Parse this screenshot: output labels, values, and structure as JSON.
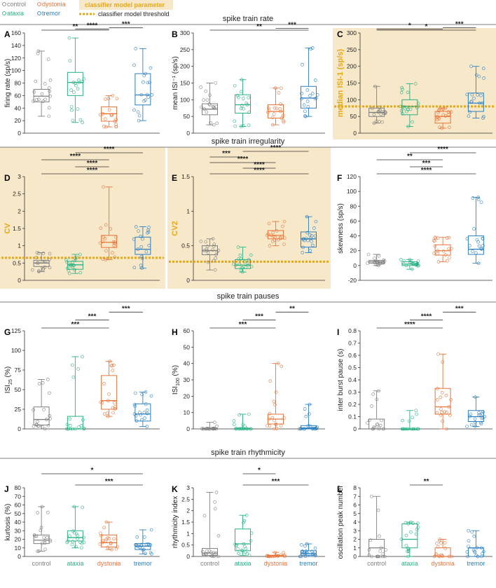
{
  "legend": {
    "groups": [
      {
        "name": "control",
        "color": "#7f7f7f"
      },
      {
        "name": "dystonia",
        "color": "#e8743b"
      },
      {
        "name": "ataxia",
        "color": "#27b184"
      },
      {
        "name": "tremor",
        "color": "#2a7fc1"
      }
    ],
    "param_label": "classifier model parameter",
    "threshold_label": "classifier model threshold",
    "param_color": "#f7e8c9",
    "threshold_color": "#e6a817"
  },
  "sections": [
    {
      "title": "spike train rate"
    },
    {
      "title": "spike train irregularity"
    },
    {
      "title": "spike train pauses"
    },
    {
      "title": "spike train rhythmicity"
    }
  ],
  "chart_data": [
    {
      "type": "box",
      "panel": "A",
      "ylabel": "firing rate (sp/s)",
      "ylim": [
        0,
        160
      ],
      "yticks": [
        0,
        20,
        40,
        60,
        80,
        100,
        120,
        140,
        160
      ],
      "highlight": false,
      "categories": [
        "control",
        "ataxia",
        "dystonia",
        "tremor"
      ],
      "boxes": [
        {
          "min": 27,
          "q1": 50,
          "median": 59,
          "q3": 70,
          "max": 131
        },
        {
          "min": 17,
          "q1": 60,
          "median": 81,
          "q3": 97,
          "max": 152
        },
        {
          "min": 10,
          "q1": 19,
          "median": 31,
          "q3": 42,
          "max": 60
        },
        {
          "min": 20,
          "q1": 45,
          "median": 61,
          "q3": 95,
          "max": 135
        }
      ],
      "significance": [
        {
          "from": 0,
          "to": 2,
          "label": "**"
        },
        {
          "from": 1,
          "to": 2,
          "label": "****"
        },
        {
          "from": 2,
          "to": 3,
          "label": "***"
        }
      ]
    },
    {
      "type": "box",
      "panel": "B",
      "ylabel": "mean ISI⁻¹ (sp/s)",
      "ylim": [
        0,
        300
      ],
      "yticks": [
        0,
        50,
        100,
        150,
        200,
        250,
        300
      ],
      "highlight": false,
      "categories": [
        "control",
        "ataxia",
        "dystonia",
        "tremor"
      ],
      "boxes": [
        {
          "min": 25,
          "q1": 55,
          "median": 72,
          "q3": 88,
          "max": 150
        },
        {
          "min": 20,
          "q1": 60,
          "median": 85,
          "q3": 115,
          "max": 160
        },
        {
          "min": 25,
          "q1": 45,
          "median": 65,
          "q3": 85,
          "max": 135
        },
        {
          "min": 50,
          "q1": 75,
          "median": 105,
          "q3": 140,
          "max": 255
        }
      ],
      "significance": [
        {
          "from": 0,
          "to": 3,
          "label": "**"
        },
        {
          "from": 2,
          "to": 3,
          "label": "***"
        }
      ]
    },
    {
      "type": "box",
      "panel": "C",
      "ylabel": "median ISI-1 (sp/s)",
      "ylim": [
        0,
        300
      ],
      "yticks": [
        0,
        50,
        100,
        150,
        200,
        250,
        300
      ],
      "highlight": true,
      "threshold": 80,
      "categories": [
        "control",
        "ataxia",
        "dystonia",
        "tremor"
      ],
      "boxes": [
        {
          "min": 30,
          "q1": 50,
          "median": 62,
          "q3": 75,
          "max": 140
        },
        {
          "min": 20,
          "q1": 55,
          "median": 80,
          "q3": 100,
          "max": 148
        },
        {
          "min": 15,
          "q1": 30,
          "median": 50,
          "q3": 65,
          "max": 75
        },
        {
          "min": 45,
          "q1": 65,
          "median": 90,
          "q3": 120,
          "max": 200
        }
      ],
      "significance": [
        {
          "from": 0,
          "to": 3,
          "label": "*"
        },
        {
          "from": 0,
          "to": 2,
          "label": "*"
        },
        {
          "from": 2,
          "to": 3,
          "label": "***"
        }
      ]
    },
    {
      "type": "box",
      "panel": "D",
      "ylabel": "CV",
      "ylim": [
        0,
        3
      ],
      "yticks": [
        0,
        0.5,
        1,
        1.5,
        2,
        2.5,
        3
      ],
      "highlight": true,
      "threshold": 0.65,
      "categories": [
        "control",
        "ataxia",
        "dystonia",
        "tremor"
      ],
      "boxes": [
        {
          "min": 0.25,
          "q1": 0.4,
          "median": 0.5,
          "q3": 0.58,
          "max": 0.8
        },
        {
          "min": 0.2,
          "q1": 0.32,
          "median": 0.45,
          "q3": 0.55,
          "max": 0.75
        },
        {
          "min": 0.6,
          "q1": 0.95,
          "median": 1.1,
          "q3": 1.3,
          "max": 2.7
        },
        {
          "min": 0.35,
          "q1": 0.75,
          "median": 0.9,
          "q3": 1.25,
          "max": 1.55
        }
      ],
      "significance": [
        {
          "from": 0,
          "to": 3,
          "label": "****"
        },
        {
          "from": 1,
          "to": 2,
          "label": "****"
        },
        {
          "from": 0,
          "to": 2,
          "label": "****"
        },
        {
          "from": 1,
          "to": 3,
          "label": "****"
        }
      ]
    },
    {
      "type": "box",
      "panel": "E",
      "ylabel": "CV2",
      "ylim": [
        0,
        1.5
      ],
      "yticks": [
        0,
        0.5,
        1,
        1.5
      ],
      "highlight": true,
      "threshold": 0.27,
      "categories": [
        "control",
        "ataxia",
        "dystonia",
        "tremor"
      ],
      "boxes": [
        {
          "min": 0.15,
          "q1": 0.37,
          "median": 0.43,
          "q3": 0.5,
          "max": 0.6
        },
        {
          "min": 0.12,
          "q1": 0.17,
          "median": 0.22,
          "q3": 0.3,
          "max": 0.48
        },
        {
          "min": 0.5,
          "q1": 0.6,
          "median": 0.65,
          "q3": 0.72,
          "max": 0.85
        },
        {
          "min": 0.4,
          "q1": 0.48,
          "median": 0.6,
          "q3": 0.7,
          "max": 0.92
        }
      ],
      "significance": [
        {
          "from": 0,
          "to": 3,
          "label": "****"
        },
        {
          "from": 1,
          "to": 2,
          "label": "****"
        },
        {
          "from": 0,
          "to": 2,
          "label": "****"
        },
        {
          "from": 0,
          "to": 1,
          "label": "***"
        },
        {
          "from": 1,
          "to": 3,
          "label": "****"
        }
      ]
    },
    {
      "type": "box",
      "panel": "F",
      "ylabel": "skewness (sp/s)",
      "ylim": [
        -20,
        120
      ],
      "yticks": [
        -20,
        0,
        20,
        40,
        60,
        80,
        100,
        120
      ],
      "highlight": false,
      "categories": [
        "control",
        "ataxia",
        "dystonia",
        "tremor"
      ],
      "boxes": [
        {
          "min": 0,
          "q1": 3,
          "median": 5,
          "q3": 7,
          "max": 15
        },
        {
          "min": -5,
          "q1": 0,
          "median": 2,
          "q3": 5,
          "max": 8
        },
        {
          "min": 5,
          "q1": 14,
          "median": 20,
          "q3": 28,
          "max": 38
        },
        {
          "min": 3,
          "q1": 15,
          "median": 22,
          "q3": 40,
          "max": 92
        }
      ],
      "significance": [
        {
          "from": 0,
          "to": 3,
          "label": "****"
        },
        {
          "from": 1,
          "to": 2,
          "label": "***"
        },
        {
          "from": 0,
          "to": 2,
          "label": "**"
        },
        {
          "from": 1,
          "to": 3,
          "label": "****"
        }
      ]
    },
    {
      "type": "box",
      "panel": "G",
      "ylabel": "ISI25 (%)",
      "ylabel_main": "ISI",
      "ylabel_sub": "25",
      "ylabel_tail": " (%)",
      "ylim": [
        0,
        125
      ],
      "yticks": [
        0,
        25,
        50,
        75,
        100,
        125
      ],
      "highlight": false,
      "categories": [
        "control",
        "ataxia",
        "dystonia",
        "tremor"
      ],
      "boxes": [
        {
          "min": 0,
          "q1": 5,
          "median": 12,
          "q3": 28,
          "max": 63
        },
        {
          "min": 0,
          "q1": 0,
          "median": 0,
          "q3": 16,
          "max": 92
        },
        {
          "min": 16,
          "q1": 25,
          "median": 36,
          "q3": 68,
          "max": 86
        },
        {
          "min": 3,
          "q1": 10,
          "median": 19,
          "q3": 32,
          "max": 47
        }
      ],
      "significance": [
        {
          "from": 0,
          "to": 2,
          "label": "***"
        },
        {
          "from": 1,
          "to": 2,
          "label": "***"
        },
        {
          "from": 2,
          "to": 3,
          "label": "***"
        }
      ]
    },
    {
      "type": "box",
      "panel": "H",
      "ylabel": "ISI100 (%)",
      "ylabel_main": "ISI",
      "ylabel_sub": "100",
      "ylabel_tail": " (%)",
      "ylim": [
        0,
        60
      ],
      "yticks": [
        0,
        10,
        20,
        30,
        40,
        50,
        60
      ],
      "highlight": false,
      "categories": [
        "control",
        "ataxia",
        "dystonia",
        "tremor"
      ],
      "boxes": [
        {
          "min": 0,
          "q1": 0,
          "median": 0,
          "q3": 0.3,
          "max": 4
        },
        {
          "min": 0,
          "q1": 0,
          "median": 0,
          "q3": 0.3,
          "max": 9
        },
        {
          "min": 0,
          "q1": 3,
          "median": 6,
          "q3": 9,
          "max": 40
        },
        {
          "min": 0,
          "q1": 0,
          "median": 0.5,
          "q3": 2,
          "max": 15
        }
      ],
      "significance": [
        {
          "from": 0,
          "to": 2,
          "label": "***"
        },
        {
          "from": 1,
          "to": 2,
          "label": "***"
        },
        {
          "from": 2,
          "to": 3,
          "label": "**"
        }
      ]
    },
    {
      "type": "box",
      "panel": "I",
      "ylabel": "inter burst pause (s)",
      "ylim": [
        0,
        0.8
      ],
      "yticks": [
        0,
        0.1,
        0.2,
        0.3,
        0.4,
        0.5,
        0.6,
        0.7,
        0.8
      ],
      "highlight": false,
      "categories": [
        "control",
        "ataxia",
        "dystonia",
        "tremor"
      ],
      "boxes": [
        {
          "min": 0,
          "q1": 0,
          "median": 0,
          "q3": 0.08,
          "max": 0.31
        },
        {
          "min": 0,
          "q1": 0,
          "median": 0,
          "q3": 0,
          "max": 0.15
        },
        {
          "min": 0,
          "q1": 0.12,
          "median": 0.18,
          "q3": 0.33,
          "max": 0.61
        },
        {
          "min": 0.02,
          "q1": 0.06,
          "median": 0.1,
          "q3": 0.15,
          "max": 0.26
        }
      ],
      "significance": [
        {
          "from": 0,
          "to": 2,
          "label": "****"
        },
        {
          "from": 1,
          "to": 2,
          "label": "****"
        },
        {
          "from": 2,
          "to": 3,
          "label": "***"
        }
      ]
    },
    {
      "type": "box",
      "panel": "J",
      "ylabel": "kurtosis (%)",
      "ylim": [
        0,
        80
      ],
      "yticks": [
        0,
        10,
        20,
        30,
        40,
        50,
        60,
        70,
        80
      ],
      "highlight": false,
      "categories": [
        "control",
        "ataxia",
        "dystonia",
        "tremor"
      ],
      "boxes": [
        {
          "min": 6,
          "q1": 15,
          "median": 19,
          "q3": 25,
          "max": 58
        },
        {
          "min": 10,
          "q1": 18,
          "median": 22,
          "q3": 30,
          "max": 58
        },
        {
          "min": 8,
          "q1": 11,
          "median": 16,
          "q3": 25,
          "max": 40
        },
        {
          "min": 3,
          "q1": 8,
          "median": 12,
          "q3": 15,
          "max": 31
        }
      ],
      "significance": [
        {
          "from": 1,
          "to": 3,
          "label": "***"
        },
        {
          "from": 0,
          "to": 3,
          "label": "*"
        }
      ]
    },
    {
      "type": "box",
      "panel": "K",
      "ylabel": "rhythmicity index",
      "ylim": [
        0,
        3
      ],
      "yticks": [
        0,
        0.5,
        1,
        1.5,
        2,
        2.5,
        3
      ],
      "highlight": false,
      "categories": [
        "control",
        "ataxia",
        "dystonia",
        "tremor"
      ],
      "boxes": [
        {
          "min": 0,
          "q1": 0.05,
          "median": 0.15,
          "q3": 0.35,
          "max": 2.8
        },
        {
          "min": 0.05,
          "q1": 0.25,
          "median": 0.55,
          "q3": 1.2,
          "max": 1.8
        },
        {
          "min": 0,
          "q1": 0,
          "median": 0.02,
          "q3": 0.05,
          "max": 0.18
        },
        {
          "min": 0,
          "q1": 0.05,
          "median": 0.12,
          "q3": 0.25,
          "max": 0.55
        }
      ],
      "significance": [
        {
          "from": 1,
          "to": 3,
          "label": "***"
        },
        {
          "from": 1,
          "to": 2,
          "label": "*"
        }
      ]
    },
    {
      "type": "box",
      "panel": "L",
      "ylabel": "oscillation peak number",
      "ylim": [
        0,
        8
      ],
      "yticks": [
        0,
        1,
        2,
        3,
        4,
        5,
        6,
        7,
        8
      ],
      "highlight": false,
      "categories": [
        "control",
        "ataxia",
        "dystonia",
        "tremor"
      ],
      "boxes": [
        {
          "min": 0,
          "q1": 0,
          "median": 1,
          "q3": 2,
          "max": 7
        },
        {
          "min": 0,
          "q1": 1,
          "median": 2,
          "q3": 3.8,
          "max": 4
        },
        {
          "min": 0,
          "q1": 0,
          "median": 0,
          "q3": 1,
          "max": 2
        },
        {
          "min": 0,
          "q1": 0,
          "median": 1,
          "q3": 1,
          "max": 3
        }
      ],
      "significance": [
        {
          "from": 1,
          "to": 2,
          "label": "**"
        }
      ]
    }
  ]
}
